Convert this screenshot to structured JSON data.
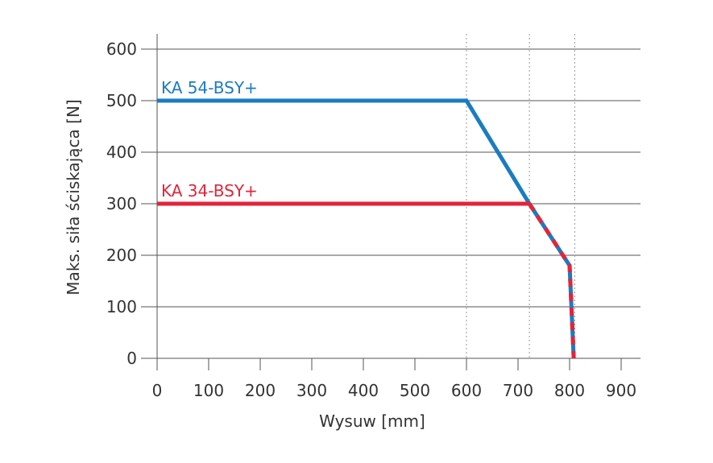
{
  "chart_data": {
    "type": "line",
    "title": "",
    "xlabel": "Wysuw [mm]",
    "ylabel": "Maks. siła ściskająca [N]",
    "xlim": [
      0,
      900
    ],
    "ylim": [
      0,
      600
    ],
    "xticks": [
      "0",
      "100",
      "200",
      "300",
      "400",
      "500",
      "600",
      "700",
      "800",
      "900"
    ],
    "yticks": [
      "0",
      "100",
      "200",
      "300",
      "400",
      "500",
      "600"
    ],
    "grid": "horizontal",
    "reference_lines_x": [
      600,
      722,
      810
    ],
    "series": [
      {
        "name": "KA 54-BSY+",
        "color": "#1a7cc1",
        "x": [
          0,
          600,
          722,
          800,
          808
        ],
        "y": [
          500,
          500,
          300,
          180,
          0
        ]
      },
      {
        "name": "KA 34-BSY+",
        "color": "#e3243b",
        "x": [
          0,
          722,
          800,
          808
        ],
        "y": [
          300,
          300,
          180,
          0
        ]
      }
    ],
    "legend": "inline labels above lines"
  }
}
